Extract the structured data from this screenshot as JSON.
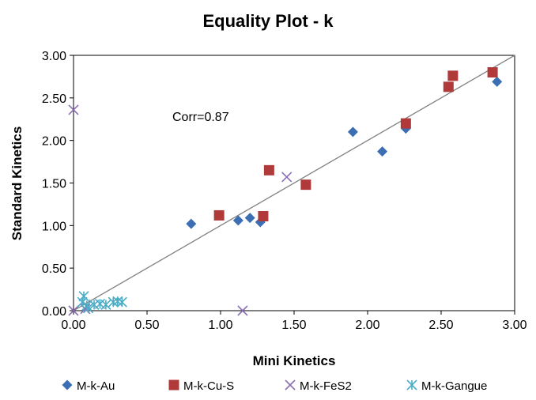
{
  "chart_data": {
    "type": "scatter",
    "title": "Equality Plot - k",
    "xlabel": "Mini Kinetics",
    "ylabel": "Standard Kinetics",
    "xlim": [
      0,
      3
    ],
    "ylim": [
      0,
      3
    ],
    "x_ticks": [
      "0.00",
      "0.50",
      "1.00",
      "1.50",
      "2.00",
      "2.50",
      "3.00"
    ],
    "y_ticks": [
      "0.00",
      "0.50",
      "1.00",
      "1.50",
      "2.00",
      "2.50",
      "3.00"
    ],
    "grid": false,
    "legend_position": "bottom",
    "annotation": "Corr=0.87",
    "reference_line": {
      "from": [
        0,
        0
      ],
      "to": [
        3,
        3
      ],
      "color": "#808080"
    },
    "series": [
      {
        "name": "M-k-Au",
        "marker": "diamond",
        "color": "#3c6eb4",
        "points": [
          [
            0.8,
            1.02
          ],
          [
            1.12,
            1.06
          ],
          [
            1.2,
            1.09
          ],
          [
            1.27,
            1.04
          ],
          [
            1.9,
            2.1
          ],
          [
            2.1,
            1.87
          ],
          [
            2.26,
            2.14
          ],
          [
            2.88,
            2.69
          ]
        ]
      },
      {
        "name": "M-k-Cu-S",
        "marker": "square",
        "color": "#b03a3a",
        "points": [
          [
            0.99,
            1.12
          ],
          [
            1.29,
            1.11
          ],
          [
            1.33,
            1.65
          ],
          [
            1.58,
            1.48
          ],
          [
            2.26,
            2.2
          ],
          [
            2.55,
            2.63
          ],
          [
            2.58,
            2.76
          ],
          [
            2.85,
            2.8
          ]
        ]
      },
      {
        "name": "M-k-FeS2",
        "marker": "x",
        "color": "#8a6fb5",
        "points": [
          [
            0.0,
            2.36
          ],
          [
            1.45,
            1.57
          ],
          [
            1.15,
            0.0
          ],
          [
            0.0,
            0.0
          ],
          [
            0.08,
            0.02
          ]
        ]
      },
      {
        "name": "M-k-Gangue",
        "marker": "star",
        "color": "#4bacc6",
        "points": [
          [
            0.07,
            0.17
          ],
          [
            0.06,
            0.1
          ],
          [
            0.09,
            0.06
          ],
          [
            0.1,
            0.03
          ],
          [
            0.14,
            0.07
          ],
          [
            0.18,
            0.08
          ],
          [
            0.22,
            0.07
          ],
          [
            0.27,
            0.1
          ],
          [
            0.3,
            0.11
          ],
          [
            0.33,
            0.1
          ]
        ]
      }
    ]
  }
}
